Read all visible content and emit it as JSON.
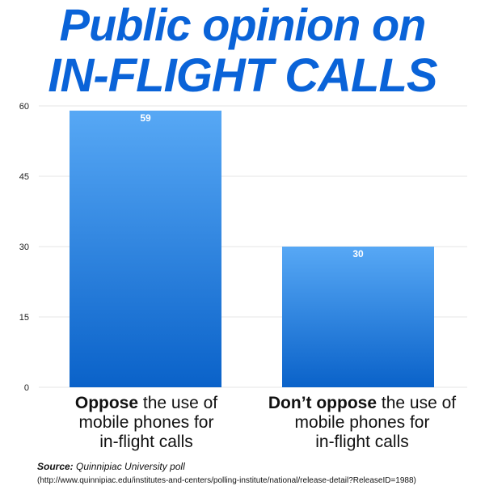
{
  "title_line1": "Public opinion on",
  "title_line2": "IN-FLIGHT CALLS",
  "categories": [
    {
      "bold": "Oppose",
      "rest": " the use of",
      "line2": "mobile phones for",
      "line3": "in-flight calls"
    },
    {
      "bold": "Don’t oppose",
      "rest": " the use of",
      "line2": "mobile phones for",
      "line3": "in-flight calls"
    }
  ],
  "source_label": "Source:",
  "source_text": " Quinnipiac University poll",
  "source_url": "(http://www.quinnipiac.edu/institutes-and-centers/polling-institute/national/release-detail?ReleaseID=1988)",
  "colors": {
    "title": "#0a63d8",
    "bar_top": "#57a8f5",
    "bar_bottom": "#0a62c9",
    "grid": "#e6e6e6"
  },
  "chart_data": {
    "type": "bar",
    "categories": [
      "Oppose the use of mobile phones for in-flight calls",
      "Don’t oppose the use of mobile phones for in-flight calls"
    ],
    "values": [
      59,
      30
    ],
    "ylim": [
      0,
      60
    ],
    "yticks": [
      0,
      15,
      30,
      45,
      60
    ],
    "data_labels": [
      "59",
      "30"
    ],
    "grid": true,
    "xlabel": "",
    "ylabel": ""
  }
}
